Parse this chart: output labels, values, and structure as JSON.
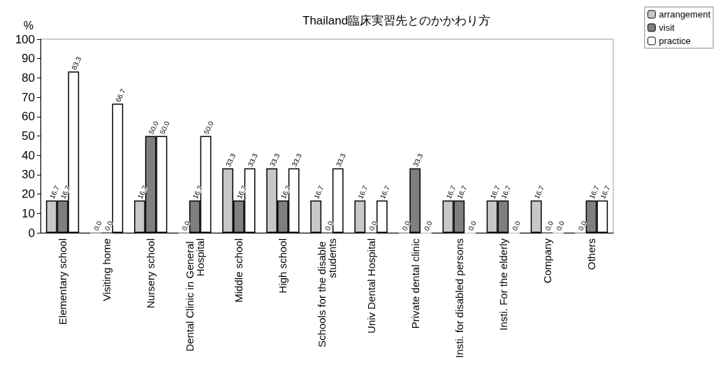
{
  "chart_data": {
    "type": "bar",
    "title": "Thailand臨床実習先とのかかわり方",
    "ylabel": "%",
    "categories": [
      "Elementary school",
      "Visiting home",
      "Nursery school",
      "Dental Clinic in General Hospital",
      "Middle school",
      "High school",
      "Schools for the disable students",
      "Univ Dental Hospital",
      "Private dental clinic",
      "Insti. for disabled persons",
      "Insti. For the elderly",
      "Company",
      "Others"
    ],
    "series": [
      {
        "name": "arrangement",
        "color": "#c8c8c8",
        "values": [
          16.7,
          0,
          16.7,
          0,
          33.3,
          33.3,
          16.7,
          16.7,
          0,
          16.7,
          16.7,
          16.7,
          0
        ],
        "value_labels": [
          "16.7",
          "0.0",
          "16.7",
          "0.0",
          "33.3",
          "33.3",
          "16.7",
          "16.7",
          "0.0",
          "16.7",
          "16.7",
          "16.7",
          "0.0"
        ]
      },
      {
        "name": "visit",
        "color": "#7f7f7f",
        "values": [
          16.7,
          0,
          50,
          16.7,
          16.7,
          16.7,
          0,
          0,
          33.3,
          16.7,
          16.7,
          0,
          16.7
        ],
        "value_labels": [
          "16.7",
          "0.0",
          "50.0",
          "16.7",
          "16.7",
          "16.7",
          "0.0",
          "0.0",
          "33.3",
          "16.7",
          "16.7",
          "0.0",
          "16.7"
        ]
      },
      {
        "name": "practice",
        "color": "#ffffff",
        "values": [
          83.3,
          66.7,
          50,
          50,
          33.3,
          33.3,
          33.3,
          16.7,
          0,
          0,
          0,
          0,
          16.7
        ],
        "value_labels": [
          "83.3",
          "66.7",
          "50.0",
          "50.0",
          "33.3",
          "33.3",
          "33.3",
          "16.7",
          "0.0",
          "0.0",
          "0.0",
          "0.0",
          "16.7"
        ]
      }
    ],
    "ylim": [
      0,
      100
    ],
    "yticks": [
      0,
      10,
      20,
      30,
      40,
      50,
      60,
      70,
      80,
      90,
      100
    ],
    "grid": false,
    "legend": "top right"
  }
}
